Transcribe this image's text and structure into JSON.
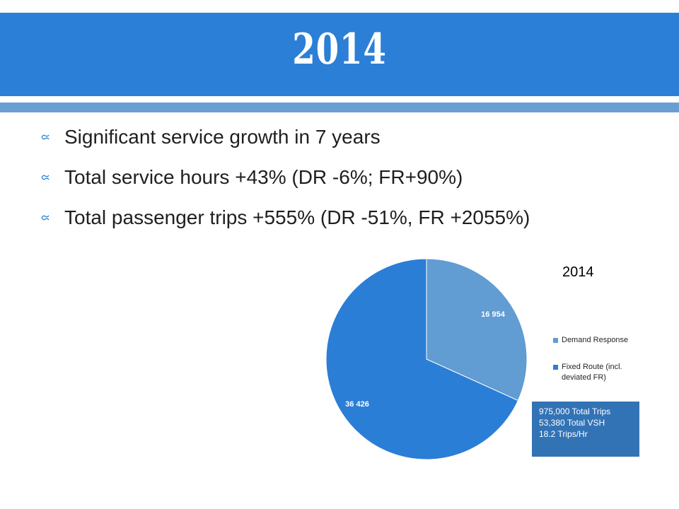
{
  "slide": {
    "title": "2014",
    "bullets": [
      "Significant service growth in 7 years",
      "Total service hours +43% (DR -6%; FR+90%)",
      "Total passenger trips +555% (DR -51%, FR +2055%)"
    ],
    "bullet_icon": "ornate-bullet-icon"
  },
  "colors": {
    "title_band": "#2b7fd6",
    "accent_bar": "#6a9fd3",
    "stats_box": "#3273b5",
    "text": "#1f1f1f"
  },
  "chart_data": {
    "type": "pie",
    "title": "2014",
    "start_angle_deg": 0,
    "direction": "clockwise",
    "legend_position": "right",
    "slices": [
      {
        "name": "Demand Response",
        "value": 16954,
        "label": "16 954",
        "color": "#619cd2"
      },
      {
        "name": "Fixed Route (incl. deviated FR)",
        "value": 36426,
        "label": "36 426",
        "color": "#2b7ed6"
      }
    ]
  },
  "stats_box": {
    "lines": [
      "975,000 Total Trips",
      "53,380 Total VSH",
      "18.2 Trips/Hr"
    ]
  }
}
